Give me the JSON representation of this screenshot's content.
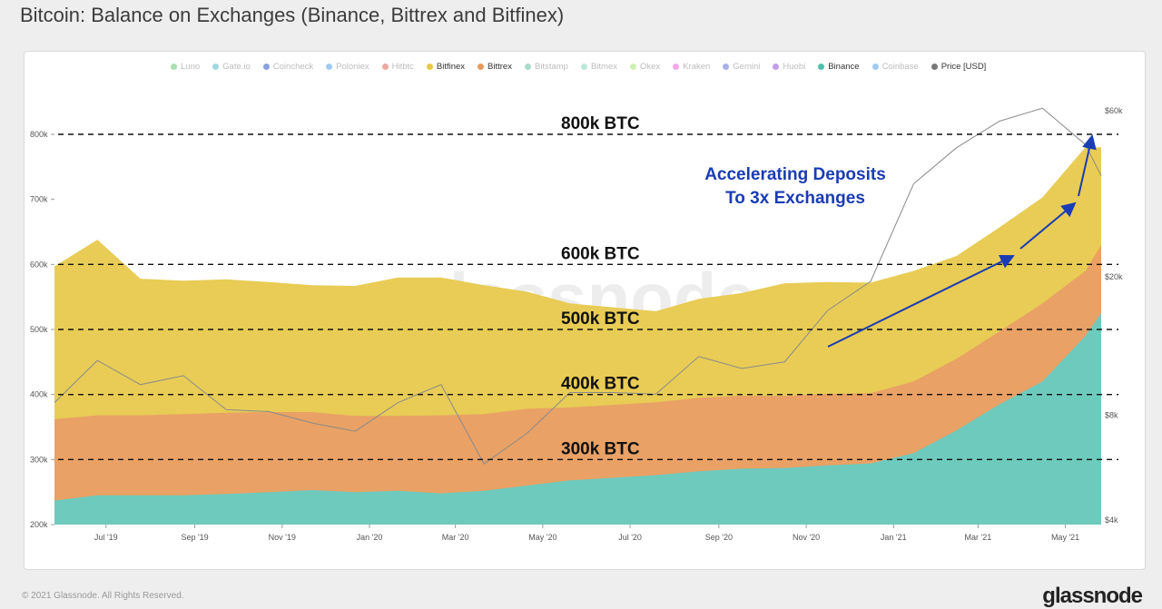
{
  "title": "Bitcoin: Balance on Exchanges (Binance, Bittrex and Bitfinex)",
  "legend": [
    {
      "label": "Luno",
      "color": "#5fc56b",
      "active": false
    },
    {
      "label": "Gate.io",
      "color": "#4bb5c9",
      "active": false
    },
    {
      "label": "Coincheck",
      "color": "#2a4cc2",
      "active": false
    },
    {
      "label": "Poloniex",
      "color": "#4e9de8",
      "active": false
    },
    {
      "label": "Hitbtc",
      "color": "#e05a4a",
      "active": false
    },
    {
      "label": "Bitfinex",
      "color": "#e8c84a",
      "active": true
    },
    {
      "label": "Bittrex",
      "color": "#e89a58",
      "active": true
    },
    {
      "label": "Bitstamp",
      "color": "#5fbf9a",
      "active": false
    },
    {
      "label": "Bitmex",
      "color": "#7fd6b8",
      "active": false
    },
    {
      "label": "Okex",
      "color": "#a6e36a",
      "active": false
    },
    {
      "label": "Kraken",
      "color": "#e85ad6",
      "active": false
    },
    {
      "label": "Gemini",
      "color": "#5a6ad6",
      "active": false
    },
    {
      "label": "Huobi",
      "color": "#8a4ad6",
      "active": false
    },
    {
      "label": "Binance",
      "color": "#4fbfae",
      "active": true
    },
    {
      "label": "Coinbase",
      "color": "#4e9de8",
      "active": false
    },
    {
      "label": "Price [USD]",
      "color": "#777777",
      "active": true
    }
  ],
  "annotation": {
    "line1": "Accelerating Deposits",
    "line2": "To 3x Exchanges",
    "color": "#1a3cb4"
  },
  "watermark": "glassnode",
  "footer": "© 2021 Glassnode. All Rights Reserved.",
  "footer_logo": "glassnode",
  "chart_data": {
    "type": "area",
    "title": "Bitcoin: Balance on Exchanges (Binance, Bittrex and Bitfinex)",
    "stacked": true,
    "x_ticks": [
      "Jul '19",
      "Sep '19",
      "Nov '19",
      "Jan '20",
      "Mar '20",
      "May '20",
      "Jul '20",
      "Sep '20",
      "Nov '20",
      "Jan '21",
      "Mar '21",
      "May '21"
    ],
    "x_range": [
      "2019-05-26",
      "2021-05-26"
    ],
    "y_left": {
      "ticks": [
        "200k",
        "300k",
        "400k",
        "500k",
        "600k",
        "700k",
        "800k"
      ],
      "range": [
        200000,
        800000
      ],
      "label": ""
    },
    "y_right": {
      "ticks": [
        "$4k",
        "$8k",
        "$20k",
        "$60k"
      ],
      "scale": "log",
      "range": [
        4000,
        60000
      ],
      "label": ""
    },
    "reference_lines": [
      {
        "label": "800k BTC",
        "value": 800000
      },
      {
        "label": "600k BTC",
        "value": 600000
      },
      {
        "label": "500k BTC",
        "value": 500000
      },
      {
        "label": "400k BTC",
        "value": 400000
      },
      {
        "label": "300k BTC",
        "value": 300000
      }
    ],
    "dates": [
      "2019-05-26",
      "2019-06-25",
      "2019-07-25",
      "2019-08-24",
      "2019-09-23",
      "2019-10-23",
      "2019-11-22",
      "2019-12-22",
      "2020-01-21",
      "2020-02-20",
      "2020-03-21",
      "2020-04-20",
      "2020-05-20",
      "2020-06-19",
      "2020-07-19",
      "2020-08-18",
      "2020-09-17",
      "2020-10-17",
      "2020-11-16",
      "2020-12-16",
      "2021-01-15",
      "2021-02-14",
      "2021-03-16",
      "2021-04-15",
      "2021-05-15",
      "2021-05-26"
    ],
    "series": [
      {
        "name": "Binance",
        "color": "#6ecabd",
        "values": [
          237000,
          245000,
          245000,
          245000,
          247000,
          250000,
          253000,
          250000,
          252000,
          248000,
          252000,
          260000,
          268000,
          272000,
          276000,
          282000,
          286000,
          287000,
          291000,
          294000,
          310000,
          345000,
          385000,
          420000,
          490000,
          525000
        ]
      },
      {
        "name": "Bittrex",
        "color": "#e9a165",
        "values": [
          125000,
          123000,
          123000,
          125000,
          125000,
          123000,
          120000,
          117000,
          115000,
          120000,
          118000,
          118000,
          112000,
          112000,
          112000,
          113000,
          112000,
          111000,
          110000,
          108000,
          110000,
          110000,
          112000,
          120000,
          100000,
          105000
        ]
      },
      {
        "name": "Bitfinex",
        "color": "#e8cc55",
        "values": [
          235000,
          270000,
          210000,
          205000,
          205000,
          200000,
          195000,
          200000,
          213000,
          212000,
          198000,
          180000,
          160000,
          150000,
          140000,
          152000,
          158000,
          173000,
          172000,
          170000,
          170000,
          158000,
          160000,
          163000,
          190000,
          150000
        ]
      },
      {
        "name": "Price [USD]",
        "color": "#8a8a8a",
        "values": [
          8700,
          11500,
          9800,
          10400,
          8300,
          8200,
          7600,
          7200,
          8700,
          9800,
          5800,
          7100,
          9300,
          9300,
          9200,
          11800,
          10900,
          11400,
          16000,
          19400,
          37000,
          47000,
          56000,
          61000,
          48000,
          39000
        ]
      }
    ]
  }
}
